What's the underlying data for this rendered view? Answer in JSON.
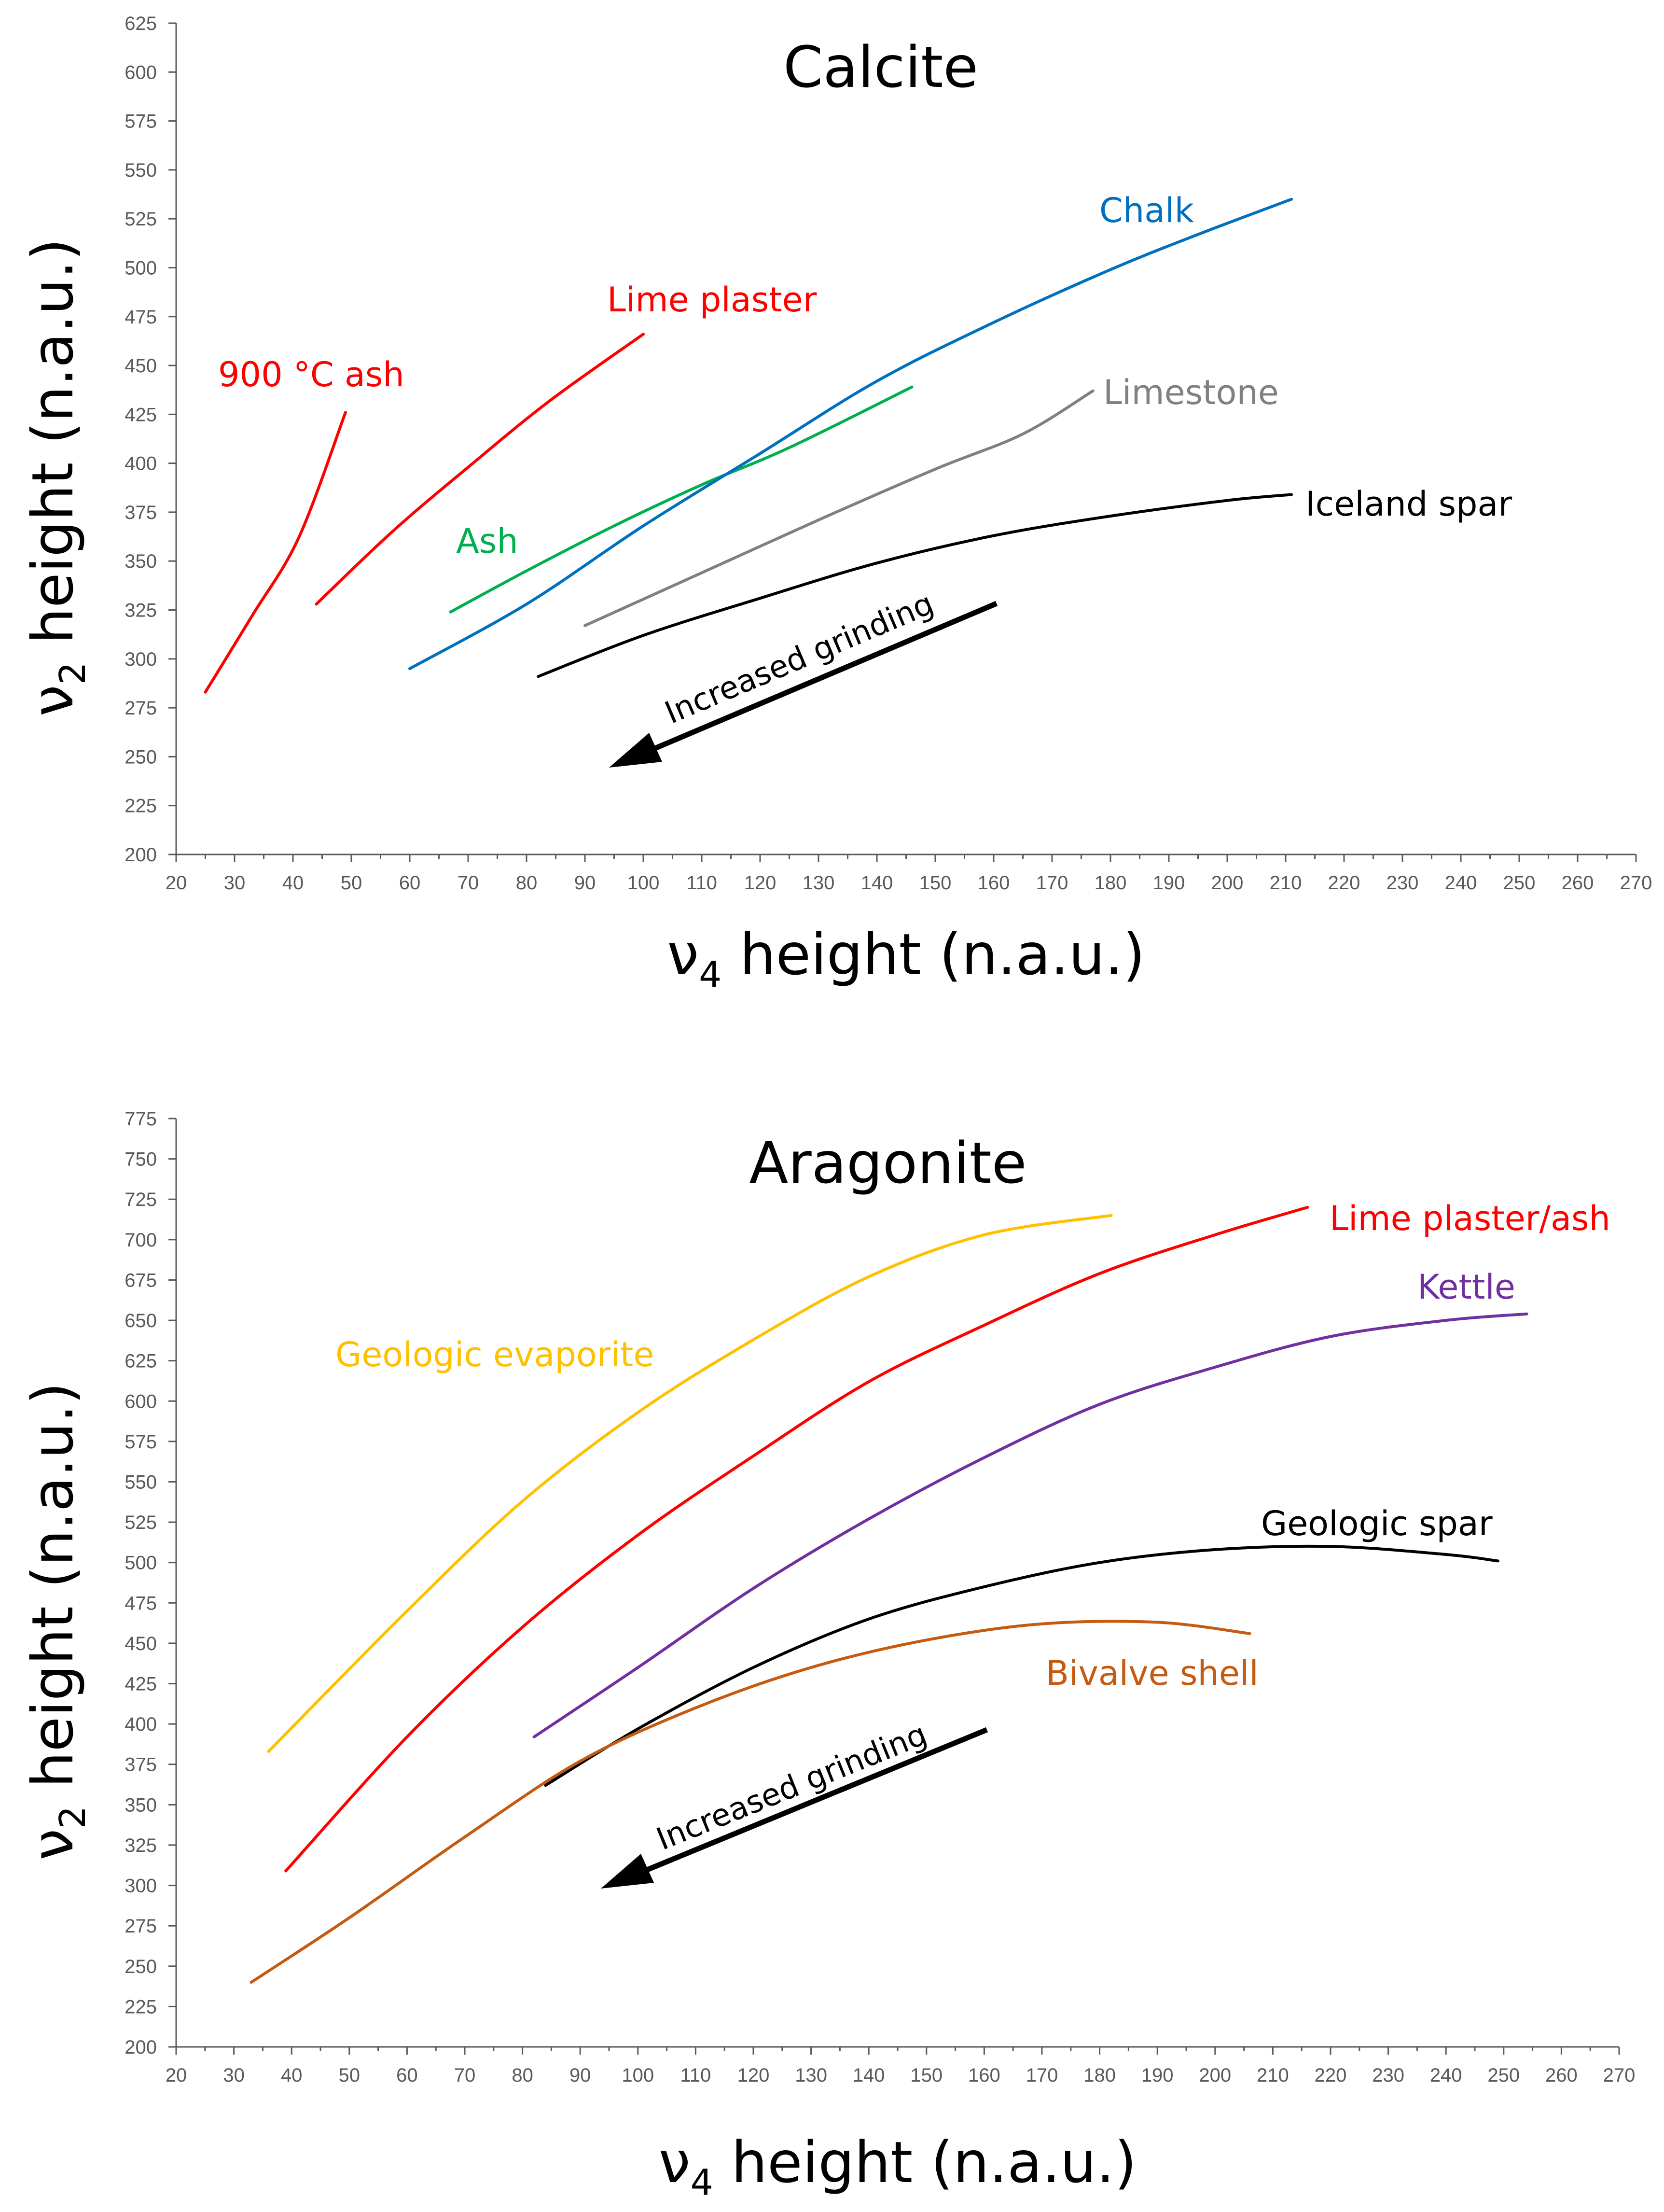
{
  "chart_data": [
    {
      "type": "line",
      "title": "Calcite",
      "xlabel": "ν4 height (n.a.u.)",
      "ylabel": "ν2 height (n.a.u.)",
      "xlim": [
        20,
        270
      ],
      "ylim": [
        200,
        625
      ],
      "x_ticks": [
        20,
        30,
        40,
        50,
        60,
        70,
        80,
        90,
        100,
        110,
        120,
        130,
        140,
        150,
        160,
        170,
        180,
        190,
        200,
        210,
        220,
        230,
        240,
        250,
        260,
        270
      ],
      "y_ticks": [
        200,
        225,
        250,
        275,
        300,
        325,
        350,
        375,
        400,
        425,
        450,
        475,
        500,
        525,
        550,
        575,
        600,
        625
      ],
      "series": [
        {
          "name": "900 °C ash",
          "color": "#ff0000",
          "points": [
            [
              25,
              283
            ],
            [
              33,
              322
            ],
            [
              41,
              362
            ],
            [
              49,
              426
            ]
          ]
        },
        {
          "name": "Lime plaster",
          "color": "#ff0000",
          "points": [
            [
              44,
              328
            ],
            [
              57,
              365
            ],
            [
              70,
              398
            ],
            [
              84,
              432
            ],
            [
              100,
              466
            ]
          ]
        },
        {
          "name": "Ash",
          "color": "#00b050",
          "points": [
            [
              67,
              324
            ],
            [
              80,
              345
            ],
            [
              95,
              368
            ],
            [
              110,
              389
            ],
            [
              125,
              408
            ],
            [
              146,
              439
            ]
          ]
        },
        {
          "name": "Chalk",
          "color": "#0070c0",
          "points": [
            [
              60,
              295
            ],
            [
              80,
              328
            ],
            [
              100,
              368
            ],
            [
              120,
              405
            ],
            [
              140,
              442
            ],
            [
              160,
              472
            ],
            [
              180,
              499
            ],
            [
              195,
              517
            ],
            [
              211,
              535
            ]
          ]
        },
        {
          "name": "Limestone",
          "color": "#808080",
          "points": [
            [
              90,
              317
            ],
            [
              110,
              344
            ],
            [
              130,
              371
            ],
            [
              150,
              397
            ],
            [
              165,
              415
            ],
            [
              177,
              437
            ]
          ]
        },
        {
          "name": "Iceland spar",
          "color": "#000000",
          "points": [
            [
              82,
              291
            ],
            [
              100,
              312
            ],
            [
              120,
              331
            ],
            [
              140,
              349
            ],
            [
              160,
              363
            ],
            [
              180,
              373
            ],
            [
              200,
              381
            ],
            [
              211,
              384
            ]
          ]
        }
      ],
      "annotations": [
        "Increased grinding"
      ]
    },
    {
      "type": "line",
      "title": "Aragonite",
      "xlabel": "ν4 height (n.a.u.)",
      "ylabel": "ν2 height (n.a.u.)",
      "xlim": [
        20,
        270
      ],
      "ylim": [
        200,
        775
      ],
      "x_ticks": [
        20,
        30,
        40,
        50,
        60,
        70,
        80,
        90,
        100,
        110,
        120,
        130,
        140,
        150,
        160,
        170,
        180,
        190,
        200,
        210,
        220,
        230,
        240,
        250,
        260,
        270
      ],
      "y_ticks": [
        200,
        225,
        250,
        275,
        300,
        325,
        350,
        375,
        400,
        425,
        450,
        475,
        500,
        525,
        550,
        575,
        600,
        625,
        650,
        675,
        700,
        725,
        750,
        775
      ],
      "series": [
        {
          "name": "Geologic evaporite",
          "color": "#ffc000",
          "points": [
            [
              36,
              383
            ],
            [
              60,
              470
            ],
            [
              80,
              538
            ],
            [
              100,
              593
            ],
            [
              120,
              638
            ],
            [
              140,
              677
            ],
            [
              160,
              703
            ],
            [
              182,
              715
            ]
          ]
        },
        {
          "name": "Lime plaster/ash",
          "color": "#ff0000",
          "points": [
            [
              39,
              309
            ],
            [
              60,
              392
            ],
            [
              80,
              460
            ],
            [
              100,
              517
            ],
            [
              120,
              566
            ],
            [
              140,
              612
            ],
            [
              160,
              647
            ],
            [
              180,
              679
            ],
            [
              200,
              703
            ],
            [
              216,
              720
            ]
          ]
        },
        {
          "name": "Kettle",
          "color": "#7030a0",
          "points": [
            [
              82,
              392
            ],
            [
              100,
              435
            ],
            [
              120,
              484
            ],
            [
              140,
              527
            ],
            [
              160,
              565
            ],
            [
              180,
              598
            ],
            [
              200,
              621
            ],
            [
              220,
              640
            ],
            [
              240,
              650
            ],
            [
              254,
              654
            ]
          ]
        },
        {
          "name": "Geologic spar",
          "color": "#000000",
          "points": [
            [
              84,
              362
            ],
            [
              100,
              397
            ],
            [
              120,
              435
            ],
            [
              140,
              465
            ],
            [
              160,
              485
            ],
            [
              180,
              500
            ],
            [
              200,
              508
            ],
            [
              220,
              510
            ],
            [
              240,
              505
            ],
            [
              249,
              501
            ]
          ]
        },
        {
          "name": "Bivalve shell",
          "color": "#c55a11",
          "points": [
            [
              33,
              240
            ],
            [
              50,
              280
            ],
            [
              70,
              330
            ],
            [
              90,
              377
            ],
            [
              110,
              410
            ],
            [
              130,
              435
            ],
            [
              150,
              452
            ],
            [
              170,
              462
            ],
            [
              190,
              463
            ],
            [
              206,
              456
            ]
          ]
        }
      ],
      "annotations": [
        "Increased grinding"
      ]
    }
  ]
}
